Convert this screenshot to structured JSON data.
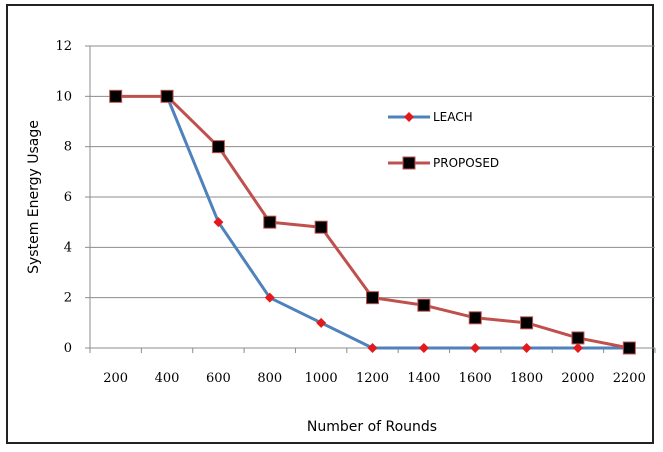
{
  "chart_data": {
    "type": "line",
    "title": "",
    "xlabel": "Number of Rounds",
    "ylabel": "System Energy Usage",
    "categories": [
      "200",
      "400",
      "600",
      "800",
      "1000",
      "1200",
      "1400",
      "1600",
      "1800",
      "2000",
      "2200"
    ],
    "ylim": [
      0,
      12
    ],
    "yticks": [
      0,
      2,
      4,
      6,
      8,
      10,
      12
    ],
    "grid": "horizontal",
    "legend_position": "right",
    "series": [
      {
        "name": "LEACH",
        "color": "#4f81bd",
        "marker": "diamond",
        "marker_color": "#e31a1c",
        "values": [
          10,
          10,
          5,
          2,
          1,
          0,
          0,
          0,
          0,
          0,
          0
        ],
        "present": [
          false,
          true,
          true,
          true,
          true,
          true,
          true,
          true,
          true,
          true,
          true
        ]
      },
      {
        "name": "PROPOSED",
        "color": "#c0504d",
        "marker": "square",
        "marker_color": "#000000",
        "values": [
          10,
          10,
          8,
          5,
          4.8,
          2,
          1.7,
          1.2,
          1,
          0.4,
          0
        ],
        "present": [
          true,
          true,
          true,
          true,
          true,
          true,
          true,
          true,
          true,
          true,
          true
        ]
      }
    ]
  }
}
